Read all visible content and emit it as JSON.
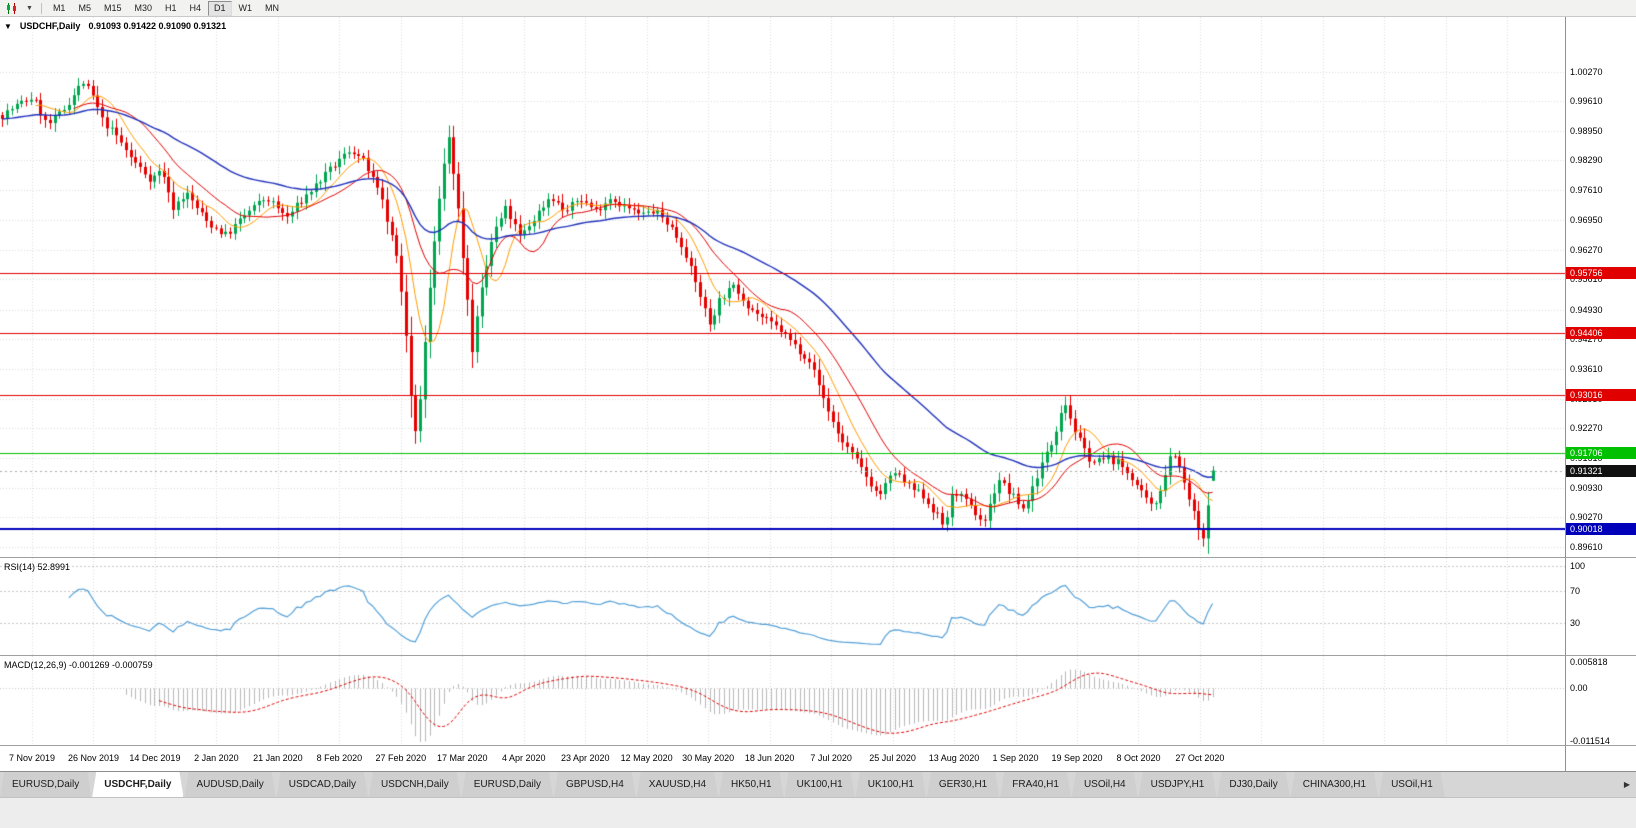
{
  "toolbar": {
    "timeframes": [
      "M1",
      "M5",
      "M15",
      "M30",
      "H1",
      "H4",
      "D1",
      "W1",
      "MN"
    ],
    "selected_timeframe": "D1"
  },
  "chart": {
    "title": "USDCHF,Daily",
    "ohlc": "0.91093 0.91422 0.91090 0.91321",
    "axis": {
      "labels": [
        "1.00270",
        "0.99610",
        "0.98950",
        "0.98290",
        "0.97610",
        "0.96950",
        "0.96270",
        "0.95610",
        "0.94930",
        "0.94270",
        "0.93610",
        "0.92930",
        "0.92270",
        "0.91610",
        "0.90930",
        "0.90270",
        "0.89610"
      ],
      "top_price": 1.015,
      "bottom_price": 0.8936
    },
    "hlines": [
      {
        "value": 0.95756,
        "label": "0.95756",
        "color": "#e00000",
        "width": 1
      },
      {
        "value": 0.94406,
        "label": "0.94406",
        "color": "#e00000",
        "width": 1
      },
      {
        "value": 0.93016,
        "label": "0.93016",
        "color": "#e00000",
        "width": 1
      },
      {
        "value": 0.91706,
        "label": "0.91706",
        "color": "#00c000",
        "width": 1
      },
      {
        "value": 0.90018,
        "label": "0.90018",
        "color": "#0000bb",
        "width": 2
      }
    ],
    "current_price": {
      "value": 0.91321,
      "label": "0.91321",
      "color": "#111111"
    },
    "dates": [
      "7 Nov 2019",
      "26 Nov 2019",
      "14 Dec 2019",
      "2 Jan 2020",
      "21 Jan 2020",
      "8 Feb 2020",
      "27 Feb 2020",
      "17 Mar 2020",
      "4 Apr 2020",
      "23 Apr 2020",
      "12 May 2020",
      "30 May 2020",
      "18 Jun 2020",
      "7 Jul 2020",
      "25 Jul 2020",
      "13 Aug 2020",
      "1 Sep 2020",
      "19 Sep 2020",
      "8 Oct 2020",
      "27 Oct 2020"
    ],
    "colors": {
      "up": "#00a650",
      "down": "#e60000",
      "ma_fast": "#ff9c00",
      "ma_mid": "#e00000",
      "ma_slow": "#2233bb",
      "grid": "#dcdcdc"
    }
  },
  "chart_data": {
    "type": "candlestick",
    "symbol": "USDCHF",
    "timeframe": "Daily",
    "candle_count": 256,
    "last_candle": {
      "open": 0.91093,
      "high": 0.91422,
      "low": 0.9109,
      "close": 0.91321
    },
    "close_path": [
      [
        0,
        0.993
      ],
      [
        0.014,
        0.9955
      ],
      [
        0.025,
        0.997
      ],
      [
        0.037,
        0.9905
      ],
      [
        0.05,
        0.994
      ],
      [
        0.066,
        1.0005
      ],
      [
        0.074,
        0.9975
      ],
      [
        0.082,
        0.992
      ],
      [
        0.095,
        0.988
      ],
      [
        0.107,
        0.983
      ],
      [
        0.123,
        0.9785
      ],
      [
        0.132,
        0.981
      ],
      [
        0.14,
        0.972
      ],
      [
        0.152,
        0.9755
      ],
      [
        0.169,
        0.969
      ],
      [
        0.185,
        0.966
      ],
      [
        0.202,
        0.971
      ],
      [
        0.218,
        0.9745
      ],
      [
        0.235,
        0.97
      ],
      [
        0.251,
        0.975
      ],
      [
        0.272,
        0.981
      ],
      [
        0.288,
        0.9855
      ],
      [
        0.3,
        0.982
      ],
      [
        0.313,
        0.974
      ],
      [
        0.325,
        0.962
      ],
      [
        0.333,
        0.945
      ],
      [
        0.339,
        0.925
      ],
      [
        0.343,
        0.921
      ],
      [
        0.346,
        0.932
      ],
      [
        0.352,
        0.952
      ],
      [
        0.36,
        0.972
      ],
      [
        0.368,
        0.9885
      ],
      [
        0.374,
        0.978
      ],
      [
        0.383,
        0.955
      ],
      [
        0.388,
        0.94
      ],
      [
        0.395,
        0.952
      ],
      [
        0.405,
        0.966
      ],
      [
        0.416,
        0.972
      ],
      [
        0.428,
        0.9655
      ],
      [
        0.44,
        0.97
      ],
      [
        0.453,
        0.975
      ],
      [
        0.465,
        0.971
      ],
      [
        0.477,
        0.9745
      ],
      [
        0.49,
        0.9715
      ],
      [
        0.502,
        0.9745
      ],
      [
        0.514,
        0.9725
      ],
      [
        0.527,
        0.9705
      ],
      [
        0.539,
        0.9715
      ],
      [
        0.551,
        0.9685
      ],
      [
        0.564,
        0.9625
      ],
      [
        0.57,
        0.957
      ],
      [
        0.576,
        0.953
      ],
      [
        0.584,
        0.946
      ],
      [
        0.593,
        0.952
      ],
      [
        0.605,
        0.9545
      ],
      [
        0.617,
        0.95
      ],
      [
        0.63,
        0.947
      ],
      [
        0.642,
        0.945
      ],
      [
        0.654,
        0.9415
      ],
      [
        0.667,
        0.938
      ],
      [
        0.679,
        0.929
      ],
      [
        0.691,
        0.921
      ],
      [
        0.704,
        0.916
      ],
      [
        0.716,
        0.911
      ],
      [
        0.724,
        0.9075
      ],
      [
        0.737,
        0.913
      ],
      [
        0.749,
        0.9095
      ],
      [
        0.761,
        0.9075
      ],
      [
        0.77,
        0.904
      ],
      [
        0.778,
        0.9005
      ],
      [
        0.786,
        0.909
      ],
      [
        0.798,
        0.9055
      ],
      [
        0.811,
        0.9015
      ],
      [
        0.823,
        0.9115
      ],
      [
        0.831,
        0.9085
      ],
      [
        0.844,
        0.9045
      ],
      [
        0.856,
        0.913
      ],
      [
        0.868,
        0.92
      ],
      [
        0.877,
        0.9295
      ],
      [
        0.885,
        0.923
      ],
      [
        0.893,
        0.918
      ],
      [
        0.901,
        0.915
      ],
      [
        0.914,
        0.916
      ],
      [
        0.922,
        0.915
      ],
      [
        0.934,
        0.9115
      ],
      [
        0.942,
        0.9075
      ],
      [
        0.951,
        0.9045
      ],
      [
        0.959,
        0.911
      ],
      [
        0.967,
        0.9185
      ],
      [
        0.975,
        0.9115
      ],
      [
        0.983,
        0.9045
      ],
      [
        0.992,
        0.897
      ],
      [
        1,
        0.9132
      ]
    ]
  },
  "rsi": {
    "label": "RSI(14) 52.8991",
    "period": 14,
    "value": 52.8991,
    "color": "#55a0d8",
    "levels": [
      {
        "v": 100,
        "label": "100"
      },
      {
        "v": 70,
        "label": "70"
      },
      {
        "v": 30,
        "label": "30"
      }
    ]
  },
  "macd": {
    "label": "MACD(12,26,9) -0.001269 -0.000759",
    "macd_value": -0.001269,
    "signal_value": -0.000759,
    "hist_color": "#b8b8b8",
    "signal_color": "#dd0000",
    "levels": [
      {
        "v": 0.005818,
        "label": "0.005818"
      },
      {
        "v": 0,
        "label": "0.00"
      },
      {
        "v": -0.011514,
        "label": "-0.011514"
      }
    ]
  },
  "tabs": {
    "items": [
      "EURUSD,Daily",
      "USDCHF,Daily",
      "AUDUSD,Daily",
      "USDCAD,Daily",
      "USDCNH,Daily",
      "EURUSD,Daily",
      "GBPUSD,H4",
      "XAUUSD,H4",
      "HK50,H1",
      "UK100,H1",
      "UK100,H1",
      "GER30,H1",
      "FRA40,H1",
      "USOil,H4",
      "USDJPY,H1",
      "DJ30,Daily",
      "CHINA300,H1",
      "USOil,H1"
    ],
    "active": "USDCHF,Daily",
    "scroll_right": "▶"
  }
}
